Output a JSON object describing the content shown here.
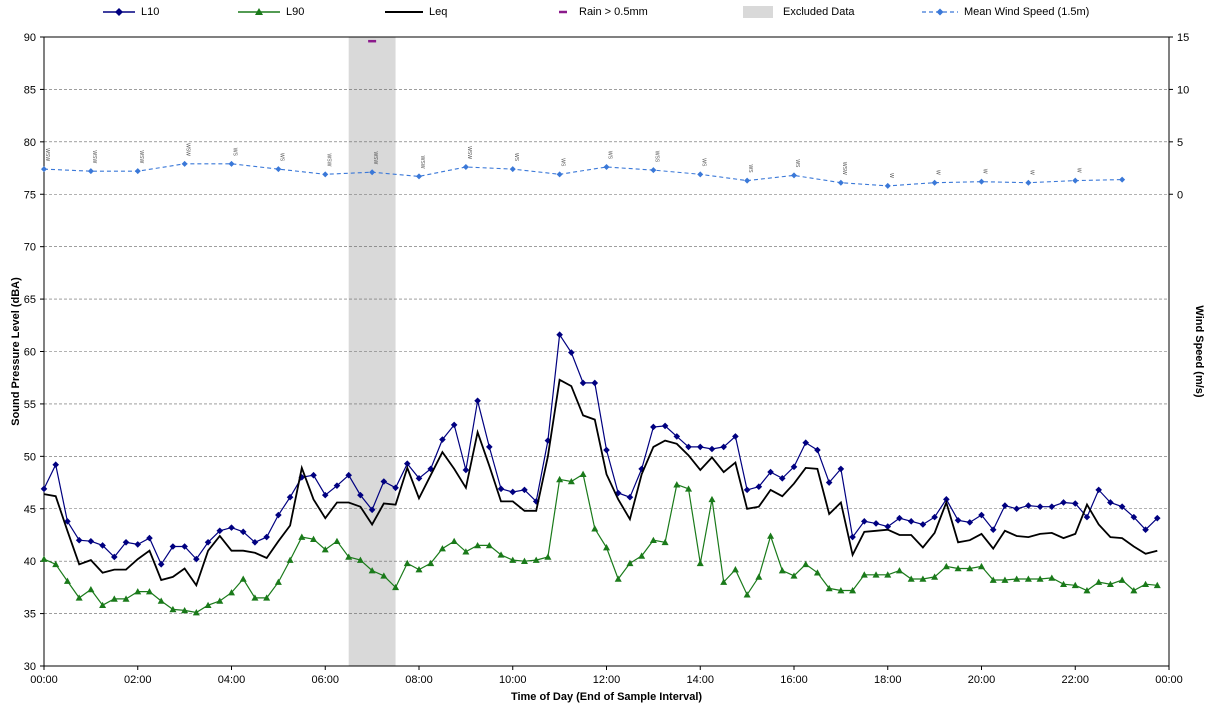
{
  "chart_data": {
    "type": "line",
    "xlabel": "Time of Day (End of Sample Interval)",
    "ylabel": "Sound Pressure Level (dBA)",
    "y2label": "Wind Speed (m/s)",
    "ylim": [
      30,
      90
    ],
    "y2lim": [
      0,
      15
    ],
    "xlim_hours": [
      0,
      24
    ],
    "x_ticks": [
      "00:00",
      "02:00",
      "04:00",
      "06:00",
      "08:00",
      "10:00",
      "12:00",
      "14:00",
      "16:00",
      "18:00",
      "20:00",
      "22:00",
      "00:00"
    ],
    "y_ticks": [
      30,
      35,
      40,
      45,
      50,
      55,
      60,
      65,
      70,
      75,
      80,
      85,
      90
    ],
    "y2_ticks": [
      0,
      5,
      10,
      15
    ],
    "grid": "horizontal-dashed",
    "legend_position": "top",
    "excluded_range": [
      "06:30",
      "07:30"
    ],
    "rain_event": {
      "x": "07:00",
      "y": 89.6
    },
    "series": [
      {
        "name": "L10",
        "color": "#000080",
        "marker": "diamond",
        "axis": "left",
        "values": [
          46.9,
          49.2,
          43.8,
          42.0,
          41.9,
          41.5,
          40.4,
          41.8,
          41.6,
          42.2,
          39.7,
          41.4,
          41.4,
          40.2,
          41.8,
          42.9,
          43.2,
          42.8,
          41.8,
          42.3,
          44.4,
          46.1,
          48.0,
          48.2,
          46.3,
          47.2,
          48.2,
          46.3,
          44.9,
          47.6,
          47.0,
          49.3,
          47.9,
          48.8,
          51.6,
          53.0,
          48.7,
          55.3,
          50.9,
          46.9,
          46.6,
          46.8,
          45.7,
          51.5,
          61.6,
          59.9,
          57.0,
          57.0,
          50.6,
          46.5,
          46.1,
          48.8,
          52.8,
          52.9,
          51.9,
          50.9,
          50.9,
          50.7,
          50.9,
          51.9,
          46.8,
          47.1,
          48.5,
          47.9,
          49.0,
          51.3,
          50.6,
          47.5,
          48.8,
          42.3,
          43.8,
          43.6,
          43.3,
          44.1,
          43.8,
          43.5,
          44.2,
          45.9,
          43.9,
          43.7,
          44.4,
          43.0,
          45.3,
          45.0,
          45.3,
          45.2,
          45.2,
          45.6,
          45.5,
          44.2,
          46.8,
          45.6,
          45.2,
          44.2,
          43.0,
          44.1
        ]
      },
      {
        "name": "L90",
        "color": "#1a7a1a",
        "marker": "triangle",
        "axis": "left",
        "values": [
          40.2,
          39.7,
          38.1,
          36.5,
          37.3,
          35.8,
          36.4,
          36.4,
          37.1,
          37.1,
          36.2,
          35.4,
          35.3,
          35.1,
          35.8,
          36.2,
          37.0,
          38.3,
          36.5,
          36.5,
          38.0,
          40.1,
          42.3,
          42.1,
          41.1,
          41.9,
          40.4,
          40.1,
          39.1,
          38.6,
          37.5,
          39.8,
          39.2,
          39.8,
          41.2,
          41.9,
          40.9,
          41.5,
          41.5,
          40.6,
          40.1,
          40.0,
          40.1,
          40.4,
          47.8,
          47.6,
          48.3,
          43.1,
          41.3,
          38.3,
          39.8,
          40.5,
          42.0,
          41.8,
          47.3,
          46.9,
          39.8,
          45.9,
          38.0,
          39.2,
          36.8,
          38.5,
          42.4,
          39.1,
          38.6,
          39.7,
          38.9,
          37.4,
          37.2,
          37.2,
          38.7,
          38.7,
          38.7,
          39.1,
          38.3,
          38.3,
          38.5,
          39.5,
          39.3,
          39.3,
          39.5,
          38.2,
          38.2,
          38.3,
          38.3,
          38.3,
          38.4,
          37.8,
          37.7,
          37.2,
          38.0,
          37.8,
          38.2,
          37.2,
          37.8,
          37.7
        ]
      },
      {
        "name": "Leq",
        "color": "#000000",
        "marker": "none",
        "axis": "left",
        "values": [
          46.4,
          46.2,
          42.9,
          39.7,
          40.1,
          38.9,
          39.2,
          39.2,
          40.2,
          41.0,
          38.2,
          38.5,
          39.3,
          37.7,
          41.0,
          42.4,
          41.0,
          41.0,
          40.8,
          40.3,
          41.9,
          43.4,
          48.9,
          45.9,
          44.1,
          45.6,
          45.6,
          45.2,
          43.5,
          45.5,
          45.4,
          48.9,
          46.0,
          48.2,
          50.4,
          48.8,
          47.0,
          52.3,
          49.1,
          45.7,
          45.7,
          44.8,
          44.8,
          50.0,
          57.3,
          56.7,
          53.9,
          53.5,
          48.3,
          45.9,
          44.0,
          48.3,
          50.9,
          51.5,
          51.2,
          50.1,
          48.7,
          49.9,
          48.5,
          49.4,
          45.0,
          45.2,
          46.8,
          46.2,
          47.4,
          48.9,
          48.8,
          44.5,
          45.6,
          40.6,
          42.8,
          42.9,
          43.0,
          42.5,
          42.5,
          41.3,
          42.7,
          45.6,
          41.8,
          42.0,
          42.6,
          41.2,
          42.9,
          42.4,
          42.3,
          42.6,
          42.7,
          42.2,
          42.6,
          45.4,
          43.5,
          42.3,
          42.2,
          41.4,
          40.7,
          41.0
        ]
      },
      {
        "name": "Mean Wind Speed (1.5m)",
        "color": "#3a78d8",
        "marker": "diamond",
        "axis": "right",
        "hours": [
          0,
          1,
          2,
          3,
          4,
          5,
          6,
          7,
          8,
          9,
          10,
          11,
          12,
          13,
          14,
          15,
          16,
          17,
          18,
          19,
          20,
          21,
          22,
          23
        ],
        "values": [
          2.4,
          2.2,
          2.2,
          2.9,
          2.9,
          2.4,
          1.9,
          2.1,
          1.7,
          2.6,
          2.4,
          1.9,
          2.6,
          2.3,
          1.9,
          1.3,
          1.8,
          1.1,
          0.8,
          1.1,
          1.2,
          1.1,
          1.3,
          1.4
        ],
        "direction_labels": [
          "WSW",
          "WSW",
          "WSW",
          "WSW",
          "WS",
          "WS",
          "WSW",
          "WSW",
          "WSW",
          "WSW",
          "WS",
          "WS",
          "WS",
          "WSS",
          "WS",
          "WS",
          "WS",
          "WSW",
          "W",
          "W",
          "W",
          "W",
          "W",
          ""
        ]
      }
    ]
  },
  "legend": {
    "items": [
      {
        "label": "L10",
        "color": "#000080"
      },
      {
        "label": "L90",
        "color": "#1a7a1a"
      },
      {
        "label": "Leq",
        "color": "#000000"
      },
      {
        "label": "Rain > 0.5mm",
        "color": "#8b1a8b"
      },
      {
        "label": "Excluded Data",
        "color": "#d9d9d9"
      },
      {
        "label": "Mean Wind Speed (1.5m)",
        "color": "#3a78d8"
      }
    ]
  }
}
